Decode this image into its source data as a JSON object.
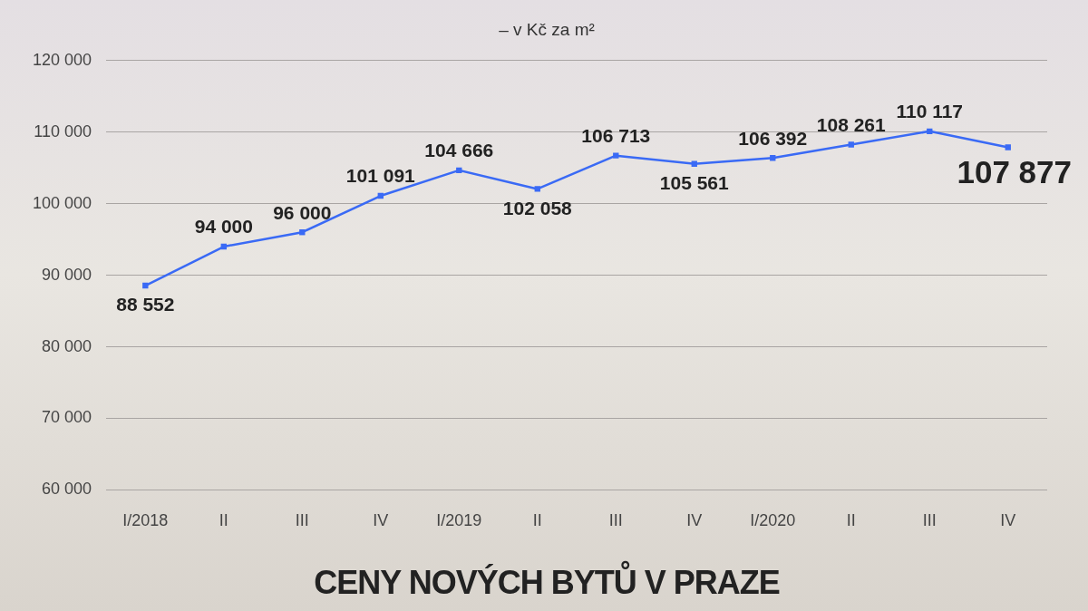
{
  "chart_data": {
    "type": "line",
    "title": "CENY NOVÝCH BYTŮ V PRAZE",
    "subtitle": "– v Kč za m²",
    "categories": [
      "I/2018",
      "II",
      "III",
      "IV",
      "I/2019",
      "II",
      "III",
      "IV",
      "I/2020",
      "II",
      "III",
      "IV"
    ],
    "series": [
      {
        "color": "#3a6af5",
        "values": [
          88552,
          94000,
          96000,
          101091,
          104666,
          102058,
          106713,
          105561,
          106392,
          108261,
          110117,
          107877
        ],
        "value_labels": [
          "88 552",
          "94 000",
          "96 000",
          "101 091",
          "104 666",
          "102 058",
          "106 713",
          "105 561",
          "106 392",
          "108 261",
          "110 117",
          "107 877"
        ]
      }
    ],
    "ylim": [
      60000,
      120000
    ],
    "yticks": [
      {
        "value": 60000,
        "label": "60 000"
      },
      {
        "value": 70000,
        "label": "70 000"
      },
      {
        "value": 80000,
        "label": "80 000"
      },
      {
        "value": 90000,
        "label": "90 000"
      },
      {
        "value": 100000,
        "label": "100 000"
      },
      {
        "value": 110000,
        "label": "110 000"
      },
      {
        "value": 120000,
        "label": "120 000"
      }
    ],
    "grid": "y",
    "legend": false,
    "marker": "square",
    "line_style": "solid"
  }
}
